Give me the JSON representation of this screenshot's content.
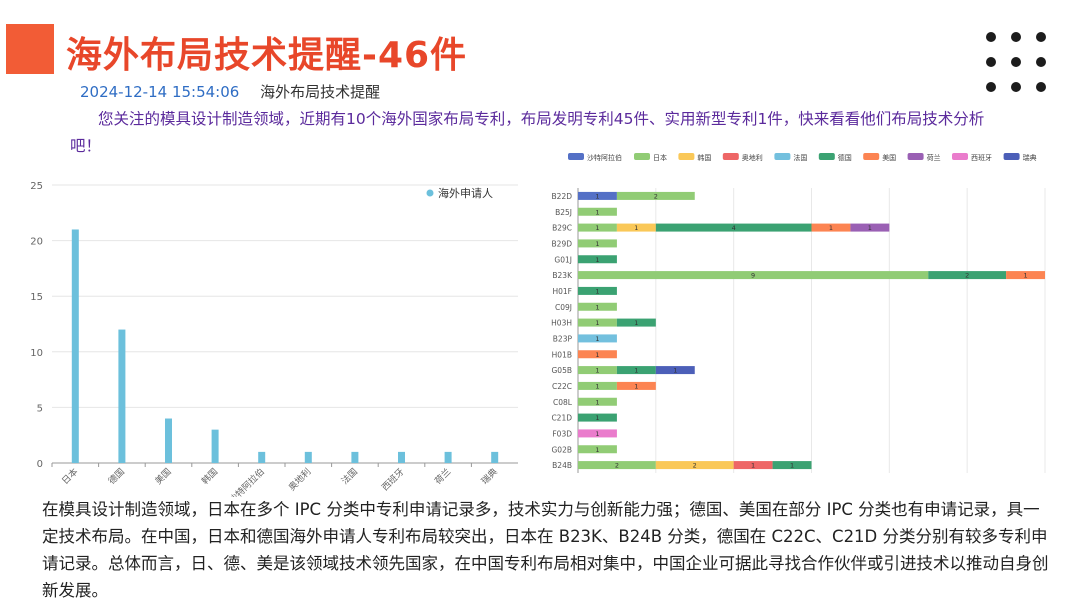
{
  "header": {
    "title": "海外布局技术提醒-46件",
    "datetime": "2024-12-14 15:54:06",
    "subtitle": "海外布局技术提醒"
  },
  "intro_text": "您关注的模具设计制造领域，近期有10个海外国家布局专利，布局发明专利45件、实用新型专利1件，快来看看他们布局技术分析吧！",
  "analysis_text": "在模具设计制造领域，日本在多个 IPC 分类中专利申请记录多，技术实力与创新能力强；德国、美国在部分 IPC 分类也有申请记录，具一定技术布局。在中国，日本和德国海外申请人专利布局较突出，日本在 B23K、B24B 分类，德国在 C22C、C21D 分类分别有较多专利申请记录。总体而言，日、德、美是该领域技术领先国家，在中国专利布局相对集中，中国企业可据此寻找合作伙伴或引进技术以推动自身创新发展。",
  "colors": {
    "title": "#e8472a",
    "accent": "#f25c36",
    "date": "#2f6dc4",
    "intro": "#5b2a9c"
  },
  "chart_data": [
    {
      "type": "bar",
      "legend": [
        "海外申请人"
      ],
      "legend_position": "top-right",
      "color": "#6cc0dc",
      "categories": [
        "日本",
        "德国",
        "美国",
        "韩国",
        "沙特阿拉伯",
        "奥地利",
        "法国",
        "西班牙",
        "荷兰",
        "瑞典"
      ],
      "values": [
        21,
        12,
        4,
        3,
        1,
        1,
        1,
        1,
        1,
        1
      ],
      "ylim": [
        0,
        25
      ],
      "yticks": [
        0,
        5,
        10,
        15,
        20,
        25
      ],
      "grid": true
    },
    {
      "type": "bar",
      "orientation": "horizontal",
      "stacked": true,
      "legend_position": "top",
      "categories": [
        "B22D",
        "B25J",
        "B29C",
        "B29D",
        "G01J",
        "B23K",
        "H01F",
        "C09J",
        "H03H",
        "B23P",
        "H01B",
        "G05B",
        "C22C",
        "C08L",
        "C21D",
        "F03D",
        "G02B",
        "B24B"
      ],
      "xlim": [
        0,
        12
      ],
      "xticks": [
        0,
        2,
        4,
        6,
        8,
        10,
        12
      ],
      "series": [
        {
          "name": "沙特阿拉伯",
          "color": "#5470c6",
          "values": [
            1,
            0,
            0,
            0,
            0,
            0,
            0,
            0,
            0,
            0,
            0,
            0,
            0,
            0,
            0,
            0,
            0,
            0
          ]
        },
        {
          "name": "日本",
          "color": "#91cc75",
          "values": [
            2,
            1,
            1,
            1,
            0,
            9,
            0,
            1,
            1,
            0,
            0,
            1,
            1,
            1,
            0,
            0,
            1,
            2
          ]
        },
        {
          "name": "韩国",
          "color": "#fac858",
          "values": [
            0,
            0,
            1,
            0,
            0,
            0,
            0,
            0,
            0,
            0,
            0,
            0,
            0,
            0,
            0,
            0,
            0,
            2
          ]
        },
        {
          "name": "奥地利",
          "color": "#ee6666",
          "values": [
            0,
            0,
            0,
            0,
            0,
            0,
            0,
            0,
            0,
            0,
            0,
            0,
            0,
            0,
            0,
            0,
            0,
            1
          ]
        },
        {
          "name": "法国",
          "color": "#73c0de",
          "values": [
            0,
            0,
            0,
            0,
            0,
            0,
            0,
            0,
            0,
            1,
            0,
            0,
            0,
            0,
            0,
            0,
            0,
            0
          ]
        },
        {
          "name": "德国",
          "color": "#3ba272",
          "values": [
            0,
            0,
            4,
            0,
            1,
            2,
            1,
            0,
            1,
            0,
            0,
            1,
            0,
            0,
            1,
            0,
            0,
            1
          ]
        },
        {
          "name": "美国",
          "color": "#fc8452",
          "values": [
            0,
            0,
            1,
            0,
            0,
            1,
            0,
            0,
            0,
            0,
            1,
            0,
            1,
            0,
            0,
            0,
            0,
            0
          ]
        },
        {
          "name": "荷兰",
          "color": "#9a60b4",
          "values": [
            0,
            0,
            1,
            0,
            0,
            0,
            0,
            0,
            0,
            0,
            0,
            0,
            0,
            0,
            0,
            0,
            0,
            0
          ]
        },
        {
          "name": "西班牙",
          "color": "#ea7ccc",
          "values": [
            0,
            0,
            0,
            0,
            0,
            0,
            0,
            0,
            0,
            0,
            0,
            0,
            0,
            0,
            0,
            1,
            0,
            0
          ]
        },
        {
          "name": "瑞典",
          "color": "#4c5fb8",
          "values": [
            0,
            0,
            0,
            0,
            0,
            0,
            0,
            0,
            0,
            0,
            0,
            1,
            0,
            0,
            0,
            0,
            0,
            0
          ]
        }
      ],
      "grid": true
    }
  ]
}
